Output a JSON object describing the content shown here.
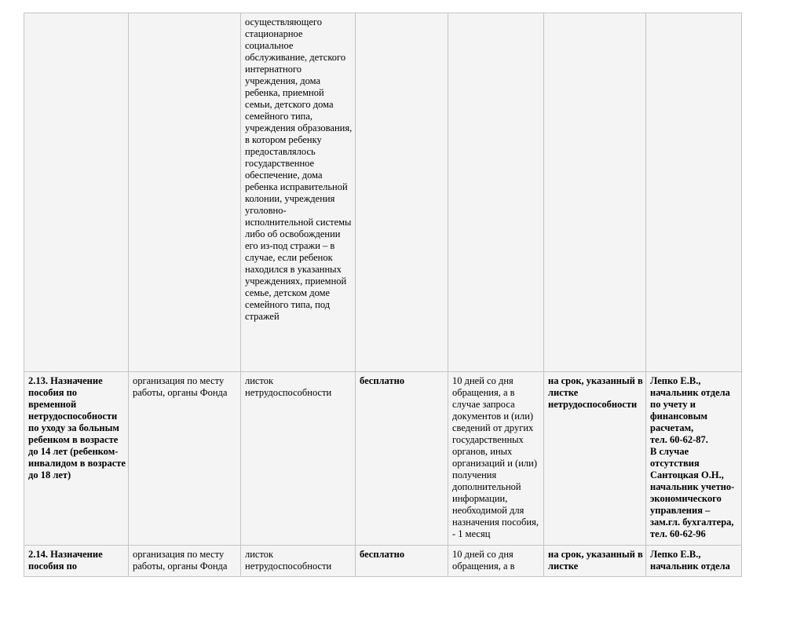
{
  "page": {
    "background": "#ffffff",
    "cell_background": "#f4f4f4",
    "border_color": "#c4c4c4",
    "text_color": "#000000"
  },
  "table": {
    "rows": [
      {
        "name": "continuation-row",
        "cells": [
          {
            "text": "",
            "bold": false
          },
          {
            "text": "",
            "bold": false
          },
          {
            "text": "осуществляющего стационарное социальное обслуживание, детского интернатного учреждения, дома ребенка, приемной семьи, детского дома семейного типа, учреждения образования, в котором ребенку предоставлялось государственное обеспечение, дома ребенка исправительной колонии, учреждения уголовно-исполнительной системы либо об освобождении его из-под стражи – в случае, если ребенок находился в указанных учреждениях, приемной семье, детском доме семейного типа, под стражей",
            "bold": false
          },
          {
            "text": "",
            "bold": false
          },
          {
            "text": "",
            "bold": false
          },
          {
            "text": "",
            "bold": false
          },
          {
            "text": "",
            "bold": false
          }
        ]
      },
      {
        "name": "row-2-13",
        "cells": [
          {
            "text": "2.13. Назначение пособия по временной нетрудоспособности по уходу за больным ребенком в возрасте до 14 лет (ребенком-инвалидом в возрасте до 18 лет)",
            "bold": true
          },
          {
            "text": "организация по месту работы, органы Фонда",
            "bold": false
          },
          {
            "text": "листок нетрудоспособности",
            "bold": false
          },
          {
            "text": "бесплатно",
            "bold": true
          },
          {
            "text": "10 дней со дня обращения, а в случае запроса документов и (или) сведений от других государственных органов, иных организаций и (или) получения дополнительной информации, необходимой для назначения пособия, - 1 месяц",
            "bold": false
          },
          {
            "text": "на срок, указанный в листке нетрудоспособности",
            "bold": true
          },
          {
            "text": "Лепко Е.В., начальник отдела по учету и финансовым расчетам,\nтел. 60-62-87.\nВ случае отсутствия Сантоцкая О.Н., начальник учетно-экономического управления – зам.гл. бухгалтера,\nтел. 60-62-96",
            "bold": true
          }
        ]
      },
      {
        "name": "row-2-14",
        "cells": [
          {
            "text": "2.14. Назначение пособия по",
            "bold": true
          },
          {
            "text": "организация по месту работы, органы Фонда",
            "bold": false
          },
          {
            "text": "листок нетрудоспособности",
            "bold": false
          },
          {
            "text": "бесплатно",
            "bold": true
          },
          {
            "text": "10 дней со дня обращения, а в",
            "bold": false
          },
          {
            "text": "на срок, указанный в листке",
            "bold": true
          },
          {
            "text": "Лепко Е.В., начальник отдела",
            "bold": true
          }
        ]
      }
    ]
  }
}
